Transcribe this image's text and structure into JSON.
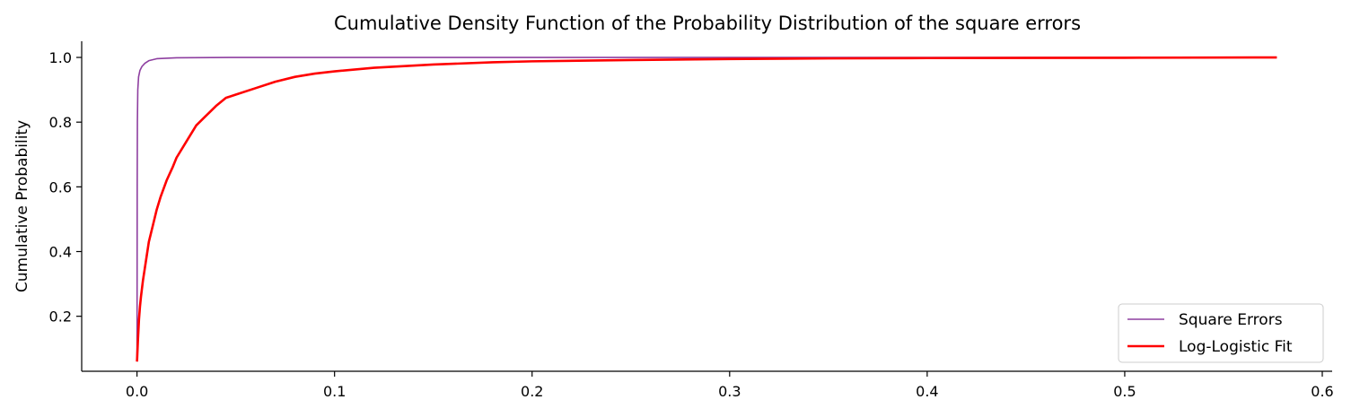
{
  "chart_data": {
    "type": "line",
    "title": "Cumulative Density Function of the Probability Distribution of the square errors",
    "xlabel": "",
    "ylabel": "Cumulative Probability",
    "xlim": [
      -0.028,
      0.605
    ],
    "ylim": [
      0.03,
      1.05
    ],
    "xticks": [
      0.0,
      0.1,
      0.2,
      0.3,
      0.4,
      0.5,
      0.6
    ],
    "xtick_labels": [
      "0.0",
      "0.1",
      "0.2",
      "0.3",
      "0.4",
      "0.5",
      "0.6"
    ],
    "yticks": [
      0.2,
      0.4,
      0.6,
      0.8,
      1.0
    ],
    "ytick_labels": [
      "0.2",
      "0.4",
      "0.6",
      "0.8",
      "1.0"
    ],
    "grid": false,
    "legend": {
      "position": "bottom-right"
    },
    "series": [
      {
        "name": "Square Errors",
        "color": "#8e3fa0",
        "width": 1.6,
        "points": [
          [
            0.0,
            0.06
          ],
          [
            5e-05,
            0.3
          ],
          [
            0.0001,
            0.6
          ],
          [
            0.0002,
            0.8
          ],
          [
            0.0004,
            0.9
          ],
          [
            0.0008,
            0.94
          ],
          [
            0.0015,
            0.96
          ],
          [
            0.0025,
            0.972
          ],
          [
            0.004,
            0.982
          ],
          [
            0.006,
            0.99
          ],
          [
            0.01,
            0.996
          ],
          [
            0.02,
            0.999
          ],
          [
            0.05,
            1.0
          ],
          [
            0.577,
            1.0
          ]
        ]
      },
      {
        "name": "Log-Logistic Fit",
        "color": "#ff0000",
        "width": 2.6,
        "points": [
          [
            0.0,
            0.06
          ],
          [
            0.0005,
            0.13
          ],
          [
            0.001,
            0.19
          ],
          [
            0.0015,
            0.23
          ],
          [
            0.002,
            0.26
          ],
          [
            0.003,
            0.31
          ],
          [
            0.004,
            0.35
          ],
          [
            0.005,
            0.39
          ],
          [
            0.006,
            0.43
          ],
          [
            0.008,
            0.48
          ],
          [
            0.01,
            0.53
          ],
          [
            0.012,
            0.57
          ],
          [
            0.015,
            0.62
          ],
          [
            0.018,
            0.66
          ],
          [
            0.02,
            0.69
          ],
          [
            0.025,
            0.74
          ],
          [
            0.03,
            0.79
          ],
          [
            0.035,
            0.82
          ],
          [
            0.04,
            0.85
          ],
          [
            0.045,
            0.875
          ],
          [
            0.05,
            0.885
          ],
          [
            0.06,
            0.905
          ],
          [
            0.07,
            0.925
          ],
          [
            0.08,
            0.94
          ],
          [
            0.09,
            0.95
          ],
          [
            0.1,
            0.957
          ],
          [
            0.12,
            0.968
          ],
          [
            0.15,
            0.978
          ],
          [
            0.18,
            0.985
          ],
          [
            0.2,
            0.988
          ],
          [
            0.25,
            0.992
          ],
          [
            0.3,
            0.995
          ],
          [
            0.35,
            0.997
          ],
          [
            0.4,
            0.998
          ],
          [
            0.5,
            0.999
          ],
          [
            0.577,
            1.0
          ]
        ]
      }
    ]
  }
}
